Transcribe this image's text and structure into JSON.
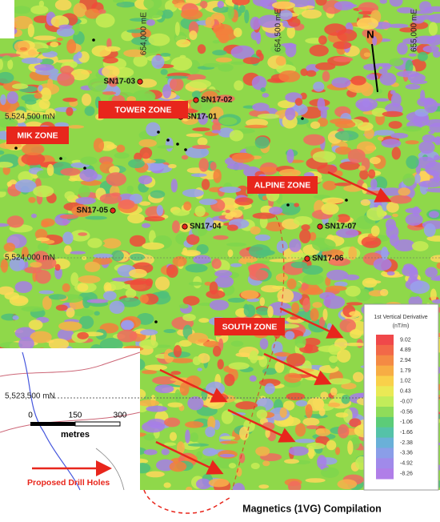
{
  "map": {
    "grid_labels": {
      "easting": [
        "654,000 mE",
        "654,500 mE",
        "655,000 mE"
      ],
      "northing": [
        "5,524,500 mN",
        "5,524,000 mN",
        "5,523,500 mN"
      ]
    },
    "zones": [
      "TOWER ZONE",
      "MIK ZONE",
      "ALPINE ZONE",
      "SOUTH ZONE"
    ],
    "drill_holes": [
      "SN17-01",
      "SN17-02",
      "SN17-03",
      "SN17-04",
      "SN17-05",
      "SN17-06",
      "SN17-07"
    ],
    "north_arrow": "N"
  },
  "legend": {
    "title": "1st Vertical Derivative",
    "units": "(nT/m)",
    "values": [
      "9.02",
      "4.89",
      "2.94",
      "1.79",
      "1.02",
      "0.43",
      "-0.07",
      "-0.56",
      "-1.06",
      "-1.66",
      "-2.38",
      "-3.36",
      "-4.92",
      "-8.26"
    ]
  },
  "scale_bar": {
    "ticks": [
      "0",
      "150",
      "300"
    ],
    "unit": "metres"
  },
  "key": "Proposed Drill Holes",
  "caption": "Magnetics (1VG) Compilation"
}
